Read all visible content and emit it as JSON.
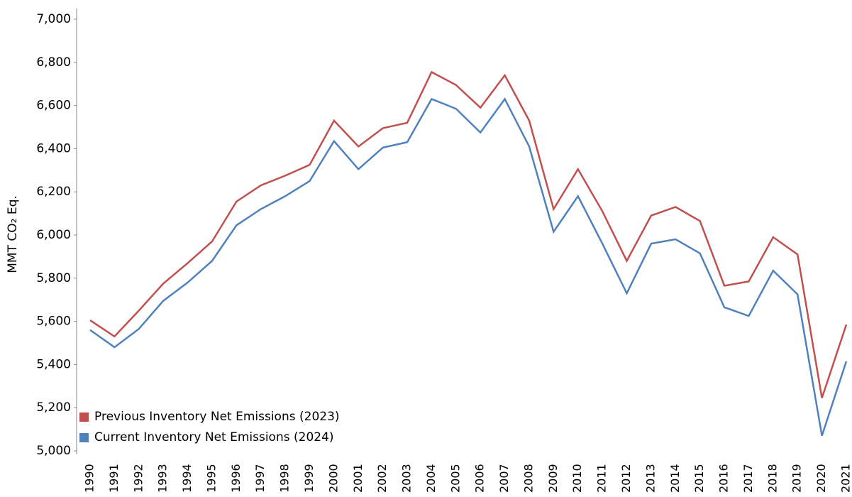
{
  "chart_data": {
    "type": "line",
    "y_label": "MMT CO₂ Eq.",
    "categories": [
      "1990",
      "1991",
      "1992",
      "1993",
      "1994",
      "1995",
      "1996",
      "1997",
      "1998",
      "1999",
      "2000",
      "2001",
      "2002",
      "2003",
      "2004",
      "2005",
      "2006",
      "2007",
      "2008",
      "2009",
      "2010",
      "2011",
      "2012",
      "2013",
      "2014",
      "2015",
      "2016",
      "2017",
      "2018",
      "2019",
      "2020",
      "2021"
    ],
    "series": [
      {
        "name": "Previous Inventory Net Emissions (2023)",
        "color": "#c0504d",
        "values": [
          5605,
          5530,
          5650,
          5775,
          5870,
          5970,
          6155,
          6230,
          6275,
          6325,
          6530,
          6410,
          6495,
          6520,
          6755,
          6695,
          6590,
          6740,
          6530,
          6120,
          6305,
          6110,
          5880,
          6090,
          6130,
          6065,
          5765,
          5785,
          5990,
          5910,
          5245,
          5585
        ]
      },
      {
        "name": "Current Inventory Net Emissions (2024)",
        "color": "#4f81bd",
        "values": [
          5560,
          5480,
          5565,
          5695,
          5780,
          5880,
          6045,
          6120,
          6180,
          6250,
          6435,
          6305,
          6405,
          6430,
          6630,
          6585,
          6475,
          6630,
          6410,
          6015,
          6180,
          5960,
          5730,
          5960,
          5980,
          5915,
          5665,
          5625,
          5835,
          5725,
          5070,
          5415
        ]
      }
    ],
    "ylim": [
      5000,
      7000
    ],
    "yticks": [
      {
        "value": 5000,
        "label": "5,000"
      },
      {
        "value": 5200,
        "label": "5,200"
      },
      {
        "value": 5400,
        "label": "5,400"
      },
      {
        "value": 5600,
        "label": "5,600"
      },
      {
        "value": 5800,
        "label": "5,800"
      },
      {
        "value": 6000,
        "label": "6,000"
      },
      {
        "value": 6200,
        "label": "6,200"
      },
      {
        "value": 6400,
        "label": "6,400"
      },
      {
        "value": 6600,
        "label": "6,600"
      },
      {
        "value": 6800,
        "label": "6,800"
      },
      {
        "value": 7000,
        "label": "7,000"
      }
    ],
    "legend_position": "lower left",
    "grid": false
  }
}
